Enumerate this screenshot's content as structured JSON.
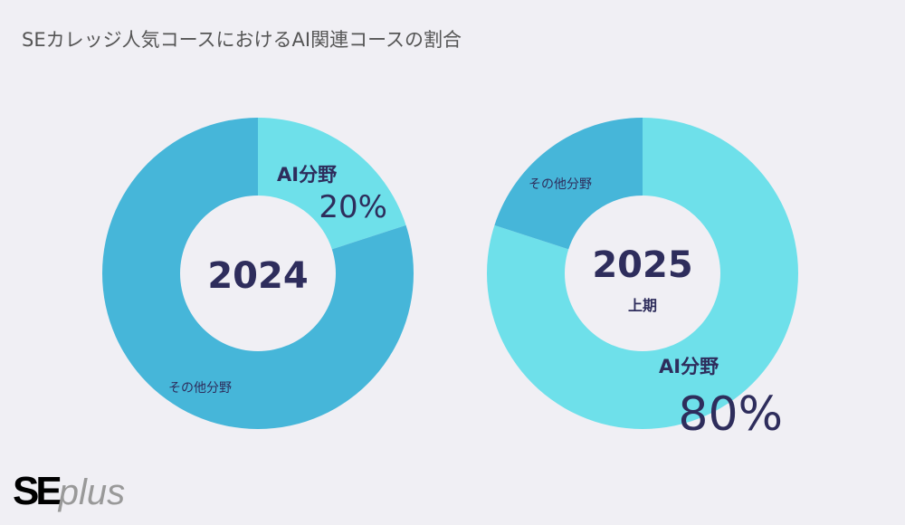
{
  "title": "SEカレッジ人気コースにおけるAI関連コースの割合",
  "logo": {
    "se": "SE",
    "plus": "plus"
  },
  "colors": {
    "ai": "#6ee0ea",
    "other": "#46b6d9",
    "text": "#2e2d5c"
  },
  "chart_data": [
    {
      "type": "pie",
      "donut": true,
      "center_label": "2024",
      "center_sublabel": "",
      "slices": [
        {
          "name": "AI分野",
          "value": 20,
          "value_label": "20%"
        },
        {
          "name": "その他分野",
          "value": 80,
          "value_label": ""
        }
      ]
    },
    {
      "type": "pie",
      "donut": true,
      "center_label": "2025",
      "center_sublabel": "上期",
      "slices": [
        {
          "name": "AI分野",
          "value": 80,
          "value_label": "80%"
        },
        {
          "name": "その他分野",
          "value": 20,
          "value_label": ""
        }
      ]
    }
  ]
}
